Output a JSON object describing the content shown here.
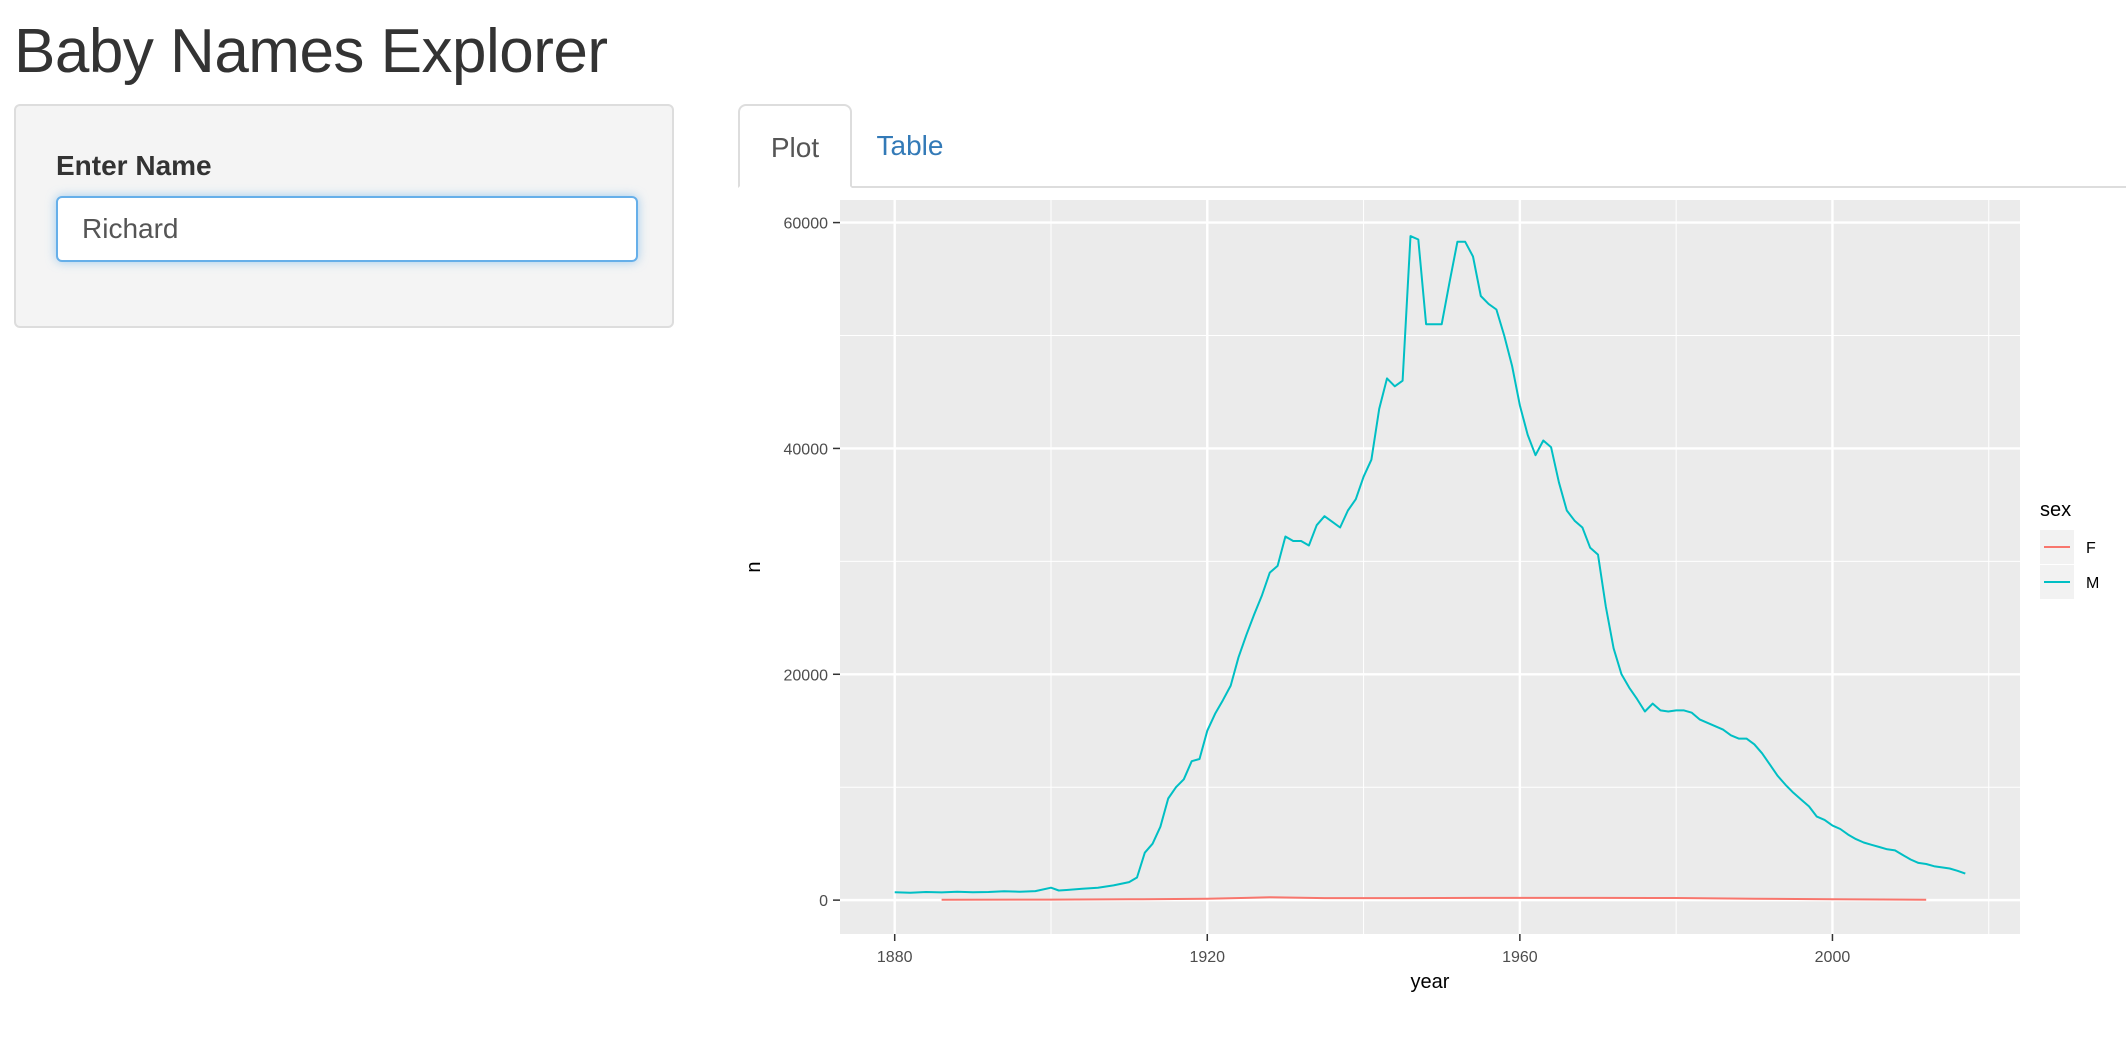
{
  "app": {
    "title": "Baby Names Explorer"
  },
  "sidebar": {
    "label": "Enter Name",
    "input_value": "Richard"
  },
  "tabs": [
    {
      "label": "Plot",
      "active": true
    },
    {
      "label": "Table",
      "active": false
    }
  ],
  "colors": {
    "accent": "#337ab7",
    "focus": "#66afe9",
    "female": "#F8766D",
    "male": "#00BFC4",
    "panel": "#EBEBEB"
  },
  "chart_data": {
    "type": "line",
    "xlabel": "year",
    "ylabel": "n",
    "xlim": [
      1873,
      2024
    ],
    "ylim": [
      -3000,
      62000
    ],
    "xticks": [
      1880,
      1920,
      1960,
      2000
    ],
    "yticks": [
      0,
      20000,
      40000,
      60000
    ],
    "grid": true,
    "legend": {
      "title": "sex",
      "position": "right"
    },
    "series": [
      {
        "name": "F",
        "color": "#F8766D",
        "x": [
          1886,
          1900,
          1910,
          1920,
          1925,
          1928,
          1935,
          1945,
          1955,
          1965,
          1970,
          1980,
          1990,
          2000,
          2012
        ],
        "y": [
          40,
          45,
          70,
          120,
          200,
          260,
          180,
          180,
          200,
          200,
          200,
          190,
          120,
          80,
          40
        ]
      },
      {
        "name": "M",
        "color": "#00BFC4",
        "x": [
          1880,
          1882,
          1884,
          1886,
          1888,
          1890,
          1892,
          1894,
          1896,
          1898,
          1900,
          1901,
          1902,
          1904,
          1906,
          1908,
          1910,
          1911,
          1912,
          1913,
          1914,
          1915,
          1916,
          1917,
          1918,
          1919,
          1920,
          1921,
          1922,
          1923,
          1924,
          1925,
          1926,
          1927,
          1928,
          1929,
          1930,
          1931,
          1932,
          1933,
          1934,
          1935,
          1936,
          1937,
          1938,
          1939,
          1940,
          1941,
          1942,
          1943,
          1944,
          1945,
          1946,
          1947,
          1948,
          1949,
          1950,
          1951,
          1952,
          1953,
          1954,
          1955,
          1956,
          1957,
          1958,
          1959,
          1960,
          1961,
          1962,
          1963,
          1964,
          1965,
          1966,
          1967,
          1968,
          1969,
          1970,
          1971,
          1972,
          1973,
          1974,
          1975,
          1976,
          1977,
          1978,
          1979,
          1980,
          1981,
          1982,
          1983,
          1984,
          1985,
          1986,
          1987,
          1988,
          1989,
          1990,
          1991,
          1992,
          1993,
          1994,
          1995,
          1996,
          1997,
          1998,
          1999,
          2000,
          2001,
          2002,
          2003,
          2004,
          2005,
          2006,
          2007,
          2008,
          2009,
          2010,
          2011,
          2012,
          2013,
          2014,
          2015,
          2016,
          2017
        ],
        "y": [
          700,
          650,
          720,
          680,
          750,
          700,
          720,
          780,
          750,
          800,
          1100,
          850,
          900,
          1000,
          1100,
          1300,
          1600,
          2000,
          4200,
          5000,
          6500,
          9000,
          10000,
          10700,
          12300,
          12500,
          15000,
          16500,
          17700,
          19000,
          21500,
          23500,
          25300,
          27000,
          29000,
          29600,
          32200,
          31800,
          31800,
          31400,
          33200,
          34000,
          33500,
          33000,
          34500,
          35500,
          37500,
          39000,
          43500,
          46200,
          45500,
          46000,
          58800,
          58500,
          51000,
          51000,
          51000,
          54700,
          58300,
          58300,
          57000,
          53500,
          52800,
          52300,
          50000,
          47300,
          43800,
          41200,
          39400,
          40700,
          40100,
          37000,
          34500,
          33600,
          33000,
          31200,
          30600,
          26000,
          22300,
          20000,
          18800,
          17800,
          16700,
          17400,
          16800,
          16700,
          16800,
          16800,
          16600,
          16000,
          15700,
          15400,
          15100,
          14600,
          14300,
          14300,
          13800,
          13000,
          12000,
          11000,
          10200,
          9500,
          8900,
          8300,
          7400,
          7100,
          6600,
          6300,
          5800,
          5400,
          5100,
          4900,
          4700,
          4500,
          4400,
          4000,
          3600,
          3300,
          3200,
          3000,
          2900,
          2800,
          2600,
          2350
        ]
      }
    ]
  }
}
